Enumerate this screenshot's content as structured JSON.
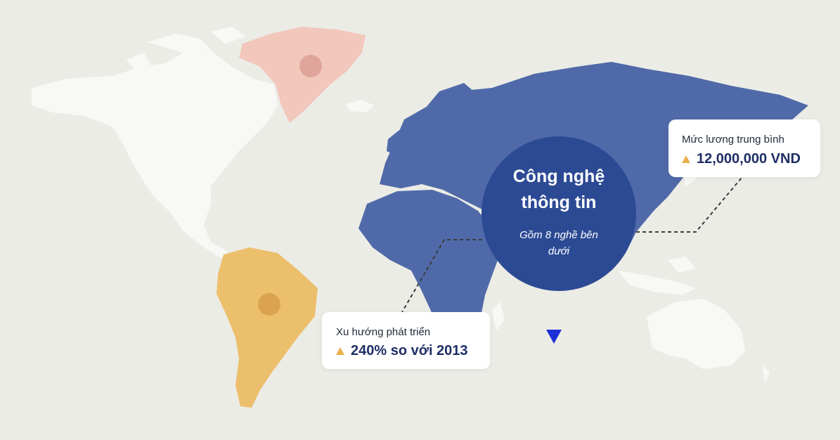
{
  "colors": {
    "background": "#ecece6",
    "land_default": "#f8f8f7",
    "land_highlight": "#506aa9",
    "hub": "#2c4a94",
    "greenland": "#f2c7bc",
    "south_america": "#ecbf6d",
    "value_text": "#1e2f66",
    "up_arrow": "#e9b04f",
    "down_arrow": "#1e2fd8"
  },
  "hub": {
    "title": "Công nghệ thông tin",
    "subtitle": "Gồm 8 nghề bên dưới"
  },
  "salary_card": {
    "label": "Mức lương trung bình",
    "value": "12,000,000 VND",
    "trend_icon": "triangle-up-icon"
  },
  "trend_card": {
    "label": "Xu hướng phát triển",
    "value": "240% so với 2013",
    "trend_icon": "triangle-up-icon"
  },
  "scroll_indicator": {
    "icon": "triangle-down-icon"
  }
}
